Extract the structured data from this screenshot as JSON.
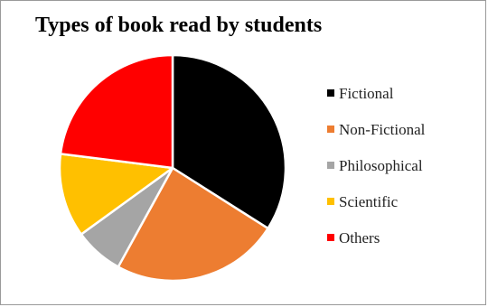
{
  "chart_data": {
    "type": "pie",
    "title": "Types of book read by students",
    "categories": [
      "Fictional",
      "Non-Fictional",
      "Philosophical",
      "Scientific",
      "Others"
    ],
    "values": [
      34,
      24,
      7,
      12,
      23
    ],
    "colors": [
      "#000000",
      "#ED7D31",
      "#A5A5A5",
      "#FFC000",
      "#FF0000"
    ],
    "legend_position": "right"
  }
}
